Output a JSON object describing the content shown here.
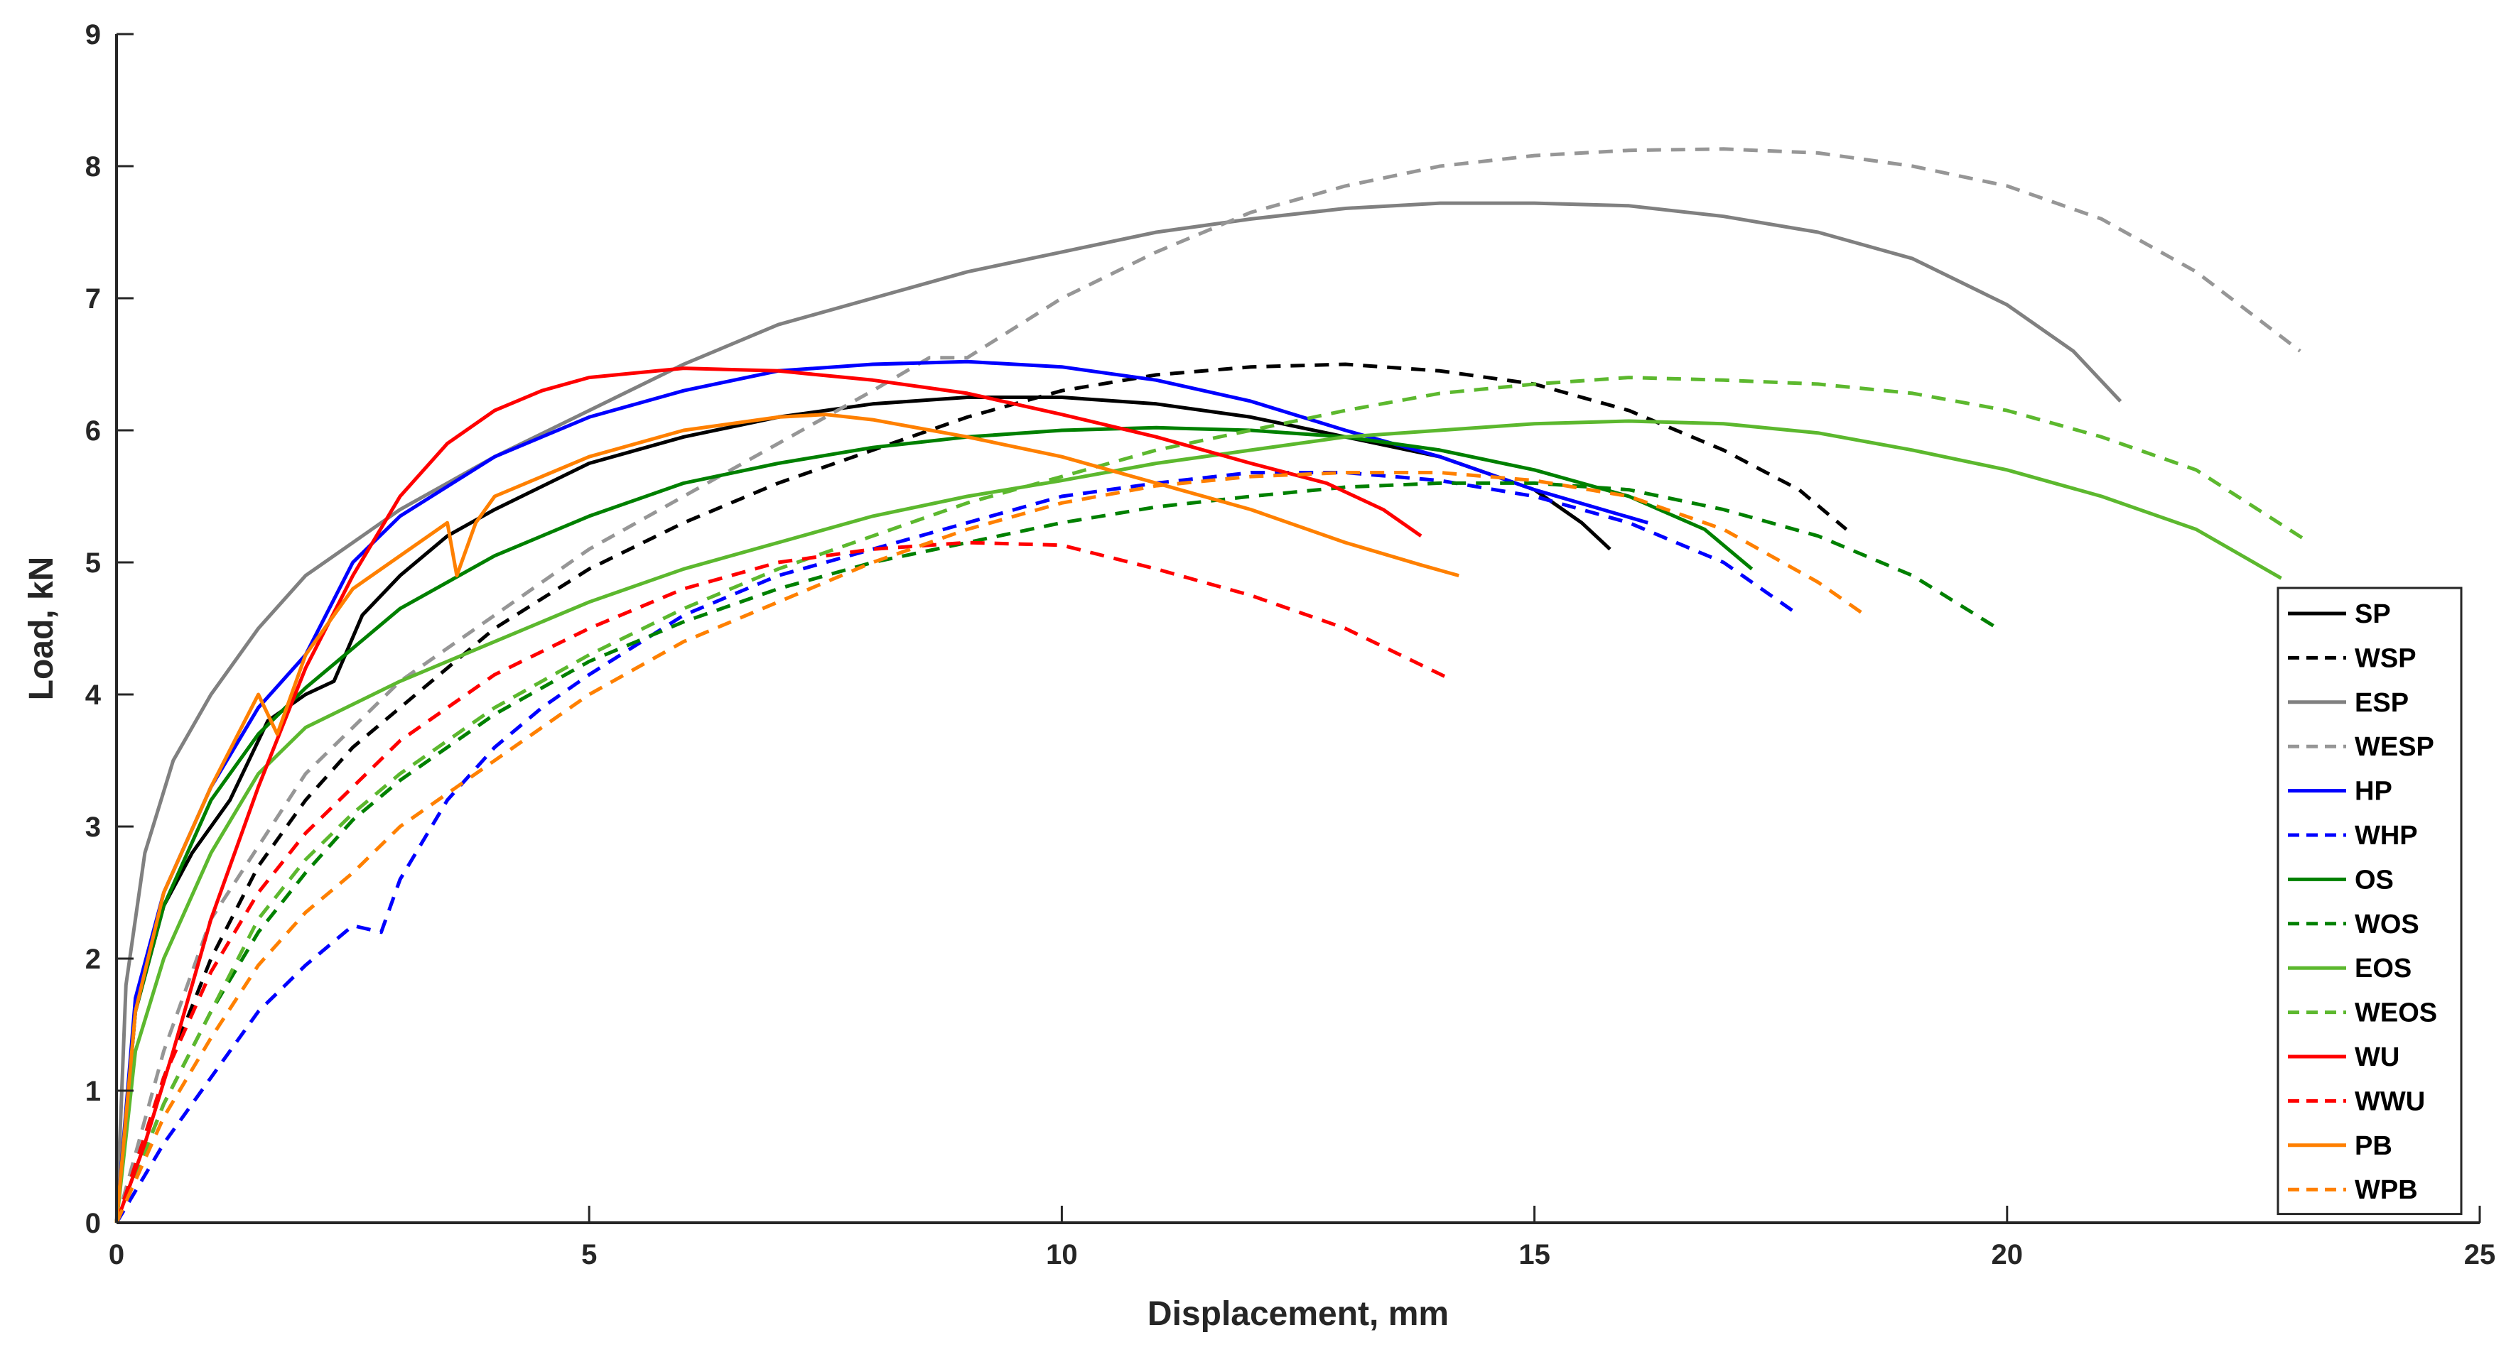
{
  "chart_data": {
    "type": "line",
    "title": "",
    "xlabel": "Displacement, mm",
    "ylabel": "Load, kN",
    "xlim": [
      0,
      25
    ],
    "ylim": [
      0,
      9
    ],
    "xticks": [
      0,
      5,
      10,
      15,
      20,
      25
    ],
    "yticks": [
      0,
      1,
      2,
      3,
      4,
      5,
      6,
      7,
      8,
      9
    ],
    "grid": false,
    "legend_position": "right",
    "series": [
      {
        "name": "SP",
        "color": "#000000",
        "dash": false,
        "x": [
          0,
          0.2,
          0.5,
          0.8,
          1.2,
          1.6,
          2.0,
          2.3,
          2.6,
          3.0,
          3.5,
          4.0,
          5.0,
          6.0,
          7.0,
          8.0,
          9.0,
          10.0,
          11.0,
          12.0,
          13.0,
          14.0,
          15.0,
          15.5,
          15.8
        ],
        "y": [
          0,
          1.6,
          2.4,
          2.8,
          3.2,
          3.8,
          4.0,
          4.1,
          4.6,
          4.9,
          5.2,
          5.4,
          5.75,
          5.95,
          6.1,
          6.2,
          6.25,
          6.25,
          6.2,
          6.1,
          5.95,
          5.8,
          5.55,
          5.3,
          5.1
        ]
      },
      {
        "name": "WSP",
        "color": "#000000",
        "dash": true,
        "x": [
          0,
          0.5,
          1.0,
          1.5,
          2.0,
          2.5,
          3.0,
          3.5,
          4.0,
          5.0,
          6.0,
          7.0,
          8.0,
          9.0,
          10.0,
          11.0,
          12.0,
          13.0,
          14.0,
          15.0,
          16.0,
          17.0,
          17.8,
          18.3
        ],
        "y": [
          0,
          1.1,
          2.0,
          2.7,
          3.2,
          3.6,
          3.9,
          4.2,
          4.5,
          4.95,
          5.3,
          5.6,
          5.85,
          6.1,
          6.3,
          6.42,
          6.48,
          6.5,
          6.45,
          6.35,
          6.15,
          5.85,
          5.55,
          5.25
        ]
      },
      {
        "name": "ESP",
        "color": "#808080",
        "dash": false,
        "x": [
          0,
          0.1,
          0.3,
          0.6,
          1.0,
          1.5,
          2.0,
          3.0,
          4.0,
          5.0,
          6.0,
          7.0,
          8.0,
          9.0,
          10.0,
          11.0,
          12.0,
          13.0,
          14.0,
          15.0,
          16.0,
          17.0,
          18.0,
          19.0,
          20.0,
          20.7,
          21.2
        ],
        "y": [
          0,
          1.8,
          2.8,
          3.5,
          4.0,
          4.5,
          4.9,
          5.4,
          5.8,
          6.15,
          6.5,
          6.8,
          7.0,
          7.2,
          7.35,
          7.5,
          7.6,
          7.68,
          7.72,
          7.72,
          7.7,
          7.62,
          7.5,
          7.3,
          6.95,
          6.6,
          6.22
        ]
      },
      {
        "name": "WESP",
        "color": "#969696",
        "dash": true,
        "x": [
          0,
          0.5,
          1.0,
          2.0,
          3.0,
          4.0,
          5.0,
          6.0,
          7.0,
          8.0,
          8.6,
          9.0,
          10.0,
          11.0,
          12.0,
          13.0,
          14.0,
          15.0,
          16.0,
          17.0,
          18.0,
          19.0,
          20.0,
          21.0,
          22.0,
          23.1
        ],
        "y": [
          0,
          1.3,
          2.3,
          3.4,
          4.1,
          4.6,
          5.1,
          5.5,
          5.9,
          6.3,
          6.55,
          6.55,
          7.0,
          7.35,
          7.65,
          7.85,
          8.0,
          8.08,
          8.12,
          8.13,
          8.1,
          8.0,
          7.85,
          7.6,
          7.2,
          6.6
        ]
      },
      {
        "name": "HP",
        "color": "#0000ff",
        "dash": false,
        "x": [
          0,
          0.2,
          0.5,
          1.0,
          1.5,
          2.0,
          2.5,
          3.0,
          4.0,
          5.0,
          6.0,
          7.0,
          8.0,
          9.0,
          10.0,
          11.0,
          12.0,
          13.0,
          14.0,
          15.0,
          16.2
        ],
        "y": [
          0,
          1.7,
          2.5,
          3.3,
          3.9,
          4.3,
          5.0,
          5.35,
          5.8,
          6.1,
          6.3,
          6.45,
          6.5,
          6.52,
          6.48,
          6.38,
          6.22,
          6.0,
          5.8,
          5.55,
          5.3
        ]
      },
      {
        "name": "WHP",
        "color": "#0000ff",
        "dash": true,
        "x": [
          0,
          0.5,
          1.0,
          1.5,
          2.0,
          2.5,
          2.8,
          3.0,
          3.5,
          4.0,
          4.5,
          5.0,
          6.0,
          7.0,
          8.0,
          9.0,
          10.0,
          11.0,
          12.0,
          13.0,
          14.0,
          15.0,
          16.0,
          17.0,
          17.8
        ],
        "y": [
          0,
          0.6,
          1.1,
          1.6,
          1.95,
          2.25,
          2.2,
          2.6,
          3.2,
          3.6,
          3.9,
          4.15,
          4.6,
          4.9,
          5.1,
          5.3,
          5.5,
          5.6,
          5.68,
          5.68,
          5.62,
          5.5,
          5.3,
          5.0,
          4.6
        ]
      },
      {
        "name": "OS",
        "color": "#008000",
        "dash": false,
        "x": [
          0,
          0.2,
          0.5,
          1.0,
          1.5,
          2.0,
          2.5,
          3.0,
          4.0,
          5.0,
          6.0,
          7.0,
          8.0,
          9.0,
          10.0,
          11.0,
          12.0,
          13.0,
          14.0,
          15.0,
          16.0,
          16.8,
          17.3
        ],
        "y": [
          0,
          1.6,
          2.4,
          3.2,
          3.7,
          4.05,
          4.35,
          4.65,
          5.05,
          5.35,
          5.6,
          5.75,
          5.87,
          5.95,
          6.0,
          6.02,
          6.0,
          5.95,
          5.85,
          5.7,
          5.5,
          5.25,
          4.95
        ]
      },
      {
        "name": "WOS",
        "color": "#008000",
        "dash": true,
        "x": [
          0,
          0.5,
          1.0,
          1.5,
          2.0,
          2.5,
          3.0,
          4.0,
          5.0,
          6.0,
          7.0,
          8.0,
          9.0,
          10.0,
          11.0,
          12.0,
          13.0,
          14.0,
          15.0,
          16.0,
          17.0,
          18.0,
          19.0,
          19.9
        ],
        "y": [
          0,
          0.9,
          1.6,
          2.2,
          2.65,
          3.05,
          3.35,
          3.85,
          4.25,
          4.55,
          4.8,
          5.0,
          5.15,
          5.3,
          5.42,
          5.5,
          5.57,
          5.6,
          5.6,
          5.55,
          5.4,
          5.2,
          4.9,
          4.5
        ]
      },
      {
        "name": "EOS",
        "color": "#5cb82e",
        "dash": false,
        "x": [
          0,
          0.2,
          0.5,
          1.0,
          1.5,
          2.0,
          3.0,
          4.0,
          5.0,
          6.0,
          7.0,
          8.0,
          9.0,
          10.0,
          11.0,
          12.0,
          13.0,
          14.0,
          15.0,
          16.0,
          17.0,
          18.0,
          19.0,
          20.0,
          21.0,
          22.0,
          22.9
        ],
        "y": [
          0,
          1.3,
          2.0,
          2.8,
          3.4,
          3.75,
          4.1,
          4.4,
          4.7,
          4.95,
          5.15,
          5.35,
          5.5,
          5.62,
          5.75,
          5.85,
          5.95,
          6.0,
          6.05,
          6.07,
          6.05,
          5.98,
          5.85,
          5.7,
          5.5,
          5.25,
          4.88
        ]
      },
      {
        "name": "WEOS",
        "color": "#5cb82e",
        "dash": true,
        "x": [
          0,
          0.5,
          1.0,
          1.5,
          2.0,
          2.5,
          3.0,
          4.0,
          5.0,
          6.0,
          7.0,
          8.0,
          9.0,
          10.0,
          11.0,
          12.0,
          13.0,
          14.0,
          15.0,
          16.0,
          17.0,
          18.0,
          19.0,
          20.0,
          21.0,
          22.0,
          23.2
        ],
        "y": [
          0,
          0.9,
          1.6,
          2.3,
          2.75,
          3.1,
          3.4,
          3.9,
          4.3,
          4.65,
          4.95,
          5.2,
          5.45,
          5.65,
          5.85,
          6.0,
          6.15,
          6.28,
          6.35,
          6.4,
          6.38,
          6.35,
          6.28,
          6.15,
          5.95,
          5.7,
          5.15
        ]
      },
      {
        "name": "WU",
        "color": "#ff0000",
        "dash": false,
        "x": [
          0,
          0.3,
          0.6,
          1.0,
          1.5,
          2.0,
          2.5,
          3.0,
          3.5,
          4.0,
          4.5,
          5.0,
          6.0,
          7.0,
          8.0,
          9.0,
          10.0,
          11.0,
          12.0,
          12.8,
          13.4,
          13.8
        ],
        "y": [
          0,
          0.6,
          1.3,
          2.3,
          3.3,
          4.2,
          4.9,
          5.5,
          5.9,
          6.15,
          6.3,
          6.4,
          6.47,
          6.45,
          6.38,
          6.28,
          6.12,
          5.95,
          5.75,
          5.6,
          5.4,
          5.2
        ]
      },
      {
        "name": "WWU",
        "color": "#ff0000",
        "dash": true,
        "x": [
          0,
          0.5,
          1.0,
          1.5,
          2.0,
          2.5,
          3.0,
          4.0,
          5.0,
          6.0,
          7.0,
          8.0,
          9.0,
          10.0,
          11.0,
          12.0,
          13.0,
          14.1
        ],
        "y": [
          0,
          1.1,
          1.9,
          2.5,
          2.95,
          3.3,
          3.65,
          4.15,
          4.5,
          4.8,
          5.0,
          5.1,
          5.15,
          5.13,
          4.95,
          4.75,
          4.5,
          4.12
        ]
      },
      {
        "name": "PB",
        "color": "#ff8000",
        "dash": false,
        "x": [
          0,
          0.2,
          0.5,
          1.0,
          1.5,
          1.7,
          2.0,
          2.5,
          3.0,
          3.5,
          3.6,
          3.8,
          4.0,
          5.0,
          6.0,
          7.0,
          7.5,
          8.0,
          9.0,
          10.0,
          11.0,
          12.0,
          13.0,
          13.8,
          14.2
        ],
        "y": [
          0,
          1.6,
          2.5,
          3.3,
          4.0,
          3.7,
          4.3,
          4.8,
          5.05,
          5.3,
          4.9,
          5.3,
          5.5,
          5.8,
          6.0,
          6.1,
          6.12,
          6.08,
          5.95,
          5.8,
          5.6,
          5.4,
          5.15,
          4.98,
          4.9
        ]
      },
      {
        "name": "WPB",
        "color": "#ff8000",
        "dash": true,
        "x": [
          0,
          0.5,
          1.0,
          1.5,
          2.0,
          2.5,
          3.0,
          4.0,
          5.0,
          6.0,
          7.0,
          8.0,
          9.0,
          10.0,
          11.0,
          12.0,
          13.0,
          14.0,
          15.0,
          16.0,
          17.0,
          18.0,
          18.5
        ],
        "y": [
          0,
          0.8,
          1.4,
          1.95,
          2.35,
          2.65,
          3.0,
          3.5,
          4.0,
          4.4,
          4.7,
          5.0,
          5.25,
          5.45,
          5.58,
          5.65,
          5.68,
          5.68,
          5.62,
          5.5,
          5.25,
          4.85,
          4.6
        ]
      }
    ]
  }
}
